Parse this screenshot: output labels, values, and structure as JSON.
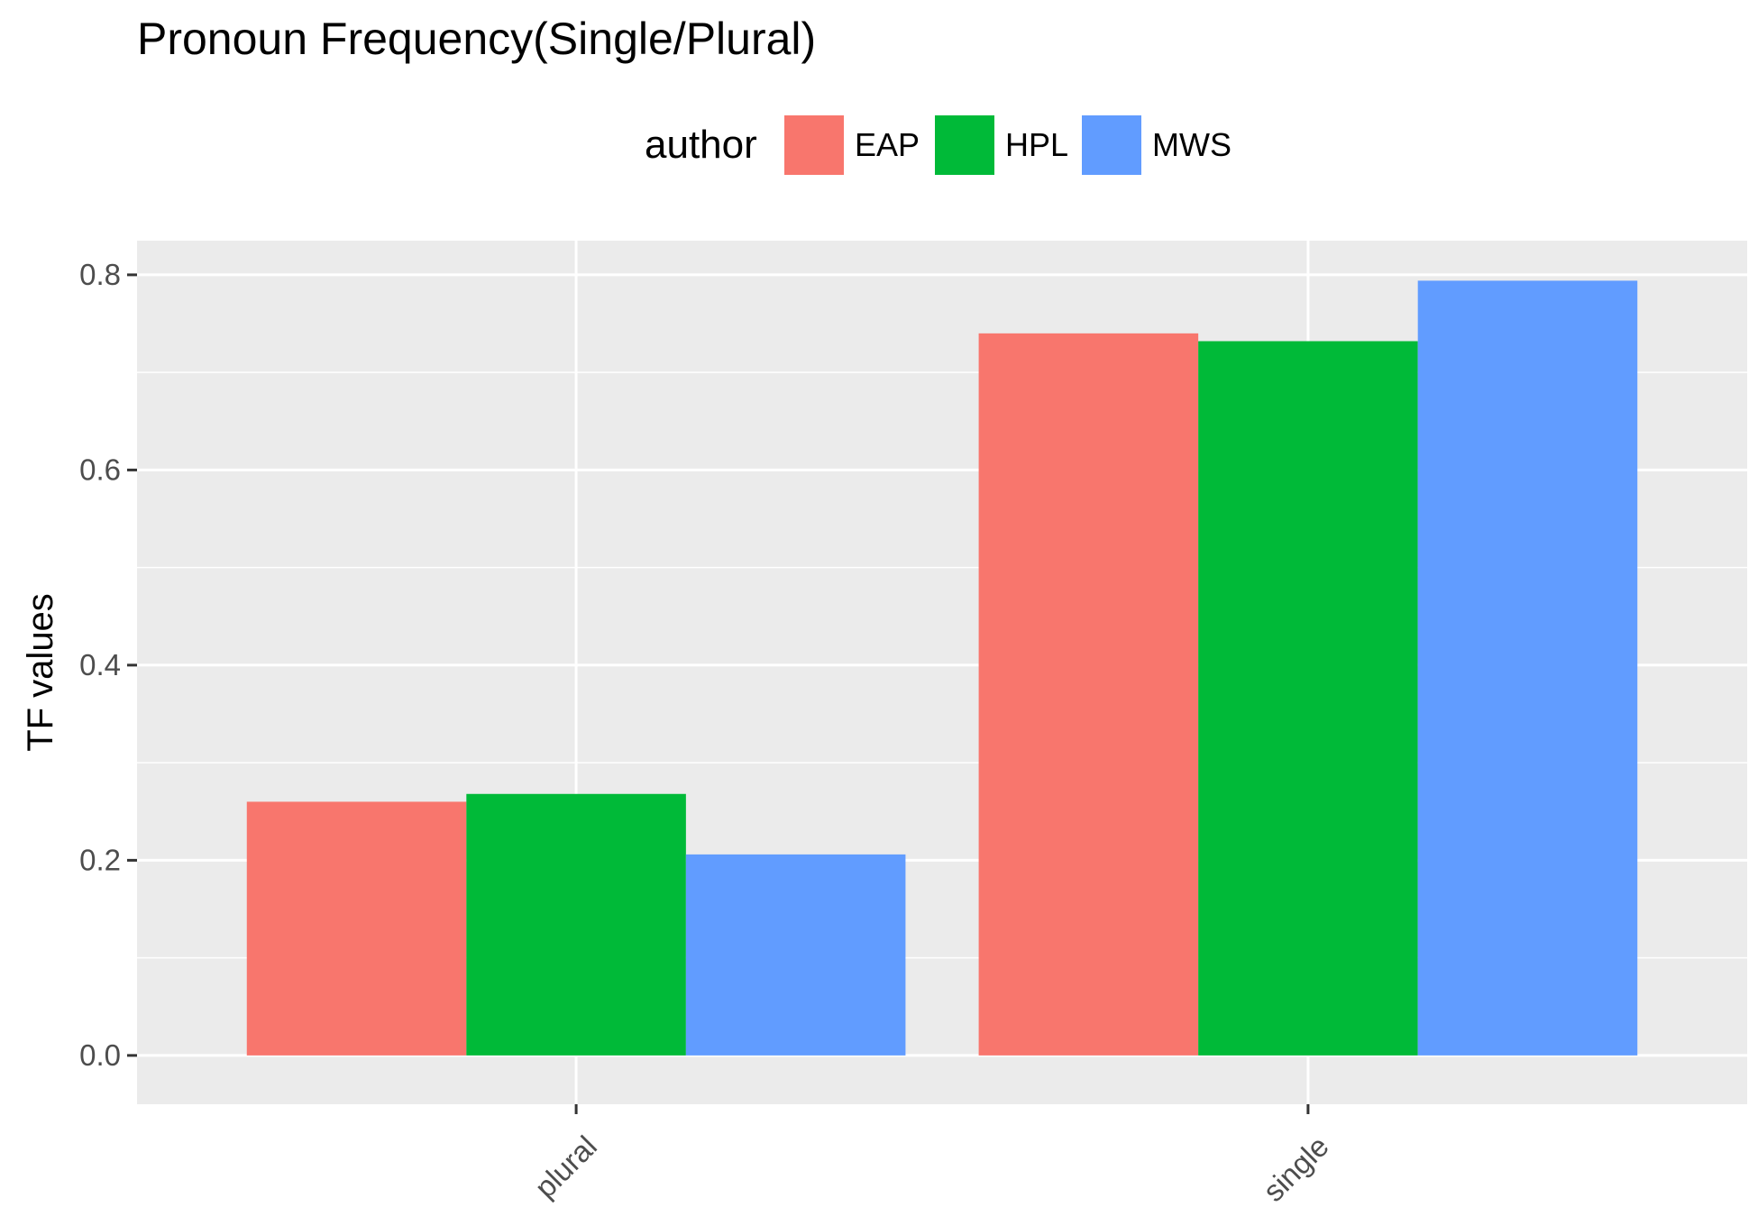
{
  "chart_data": {
    "type": "bar",
    "title": "Pronoun Frequency(Single/Plural)",
    "xlabel": "",
    "ylabel": "TF values",
    "categories": [
      "plural",
      "single"
    ],
    "series": [
      {
        "name": "EAP",
        "color": "#F8766D",
        "values": [
          0.26,
          0.74
        ]
      },
      {
        "name": "HPL",
        "color": "#00BA38",
        "values": [
          0.268,
          0.732
        ]
      },
      {
        "name": "MWS",
        "color": "#619CFF",
        "values": [
          0.206,
          0.794
        ]
      }
    ],
    "ylim": [
      -0.05,
      0.835
    ],
    "yticks": [
      0.0,
      0.2,
      0.4,
      0.6,
      0.8
    ],
    "ytick_labels": [
      "0.0",
      "0.2",
      "0.4",
      "0.6",
      "0.8"
    ],
    "grid": true,
    "legend": {
      "title": "author",
      "position": "top"
    },
    "panel_background": "#EBEBEB",
    "gridline_color": "#FFFFFF"
  }
}
